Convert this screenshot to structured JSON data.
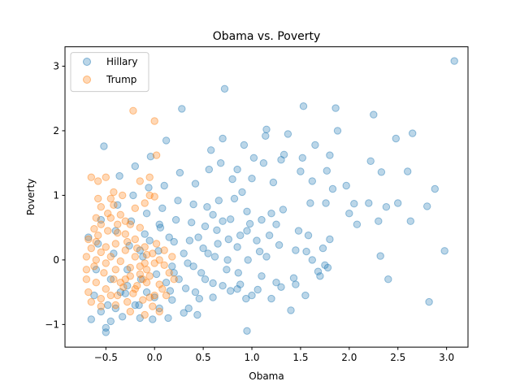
{
  "chart_data": {
    "type": "scatter",
    "title": "Obama vs. Poverty",
    "xlabel": "Obama",
    "ylabel": "Poverty",
    "xlim": [
      -0.92,
      3.22
    ],
    "ylim": [
      -1.35,
      3.3
    ],
    "xticks": [
      "−0.5",
      "0.0",
      "0.5",
      "1.0",
      "1.5",
      "2.0",
      "2.5",
      "3.0"
    ],
    "xtick_values": [
      -0.5,
      0.0,
      0.5,
      1.0,
      1.5,
      2.0,
      2.5,
      3.0
    ],
    "yticks": [
      "−1",
      "0",
      "1",
      "2",
      "3"
    ],
    "ytick_values": [
      -1,
      0,
      1,
      2,
      3
    ],
    "grid": false,
    "legend_position": "top-left",
    "series": [
      {
        "name": "Hillary",
        "color": "#1f77b4",
        "points": [
          [
            3.08,
            3.08
          ],
          [
            2.82,
            -0.65
          ],
          [
            2.98,
            0.14
          ],
          [
            2.88,
            1.1
          ],
          [
            2.8,
            0.83
          ],
          [
            2.65,
            1.96
          ],
          [
            2.6,
            1.37
          ],
          [
            2.63,
            0.6
          ],
          [
            2.5,
            0.88
          ],
          [
            2.48,
            1.88
          ],
          [
            2.38,
            0.82
          ],
          [
            2.33,
            1.36
          ],
          [
            2.3,
            0.6
          ],
          [
            2.32,
            0.06
          ],
          [
            2.4,
            -0.3
          ],
          [
            2.25,
            2.25
          ],
          [
            2.22,
            1.53
          ],
          [
            2.2,
            0.88
          ],
          [
            2.08,
            0.55
          ],
          [
            2.05,
            0.87
          ],
          [
            2.0,
            0.72
          ],
          [
            1.97,
            1.15
          ],
          [
            1.88,
            2.0
          ],
          [
            1.86,
            2.35
          ],
          [
            1.83,
            1.1
          ],
          [
            1.8,
            1.62
          ],
          [
            1.77,
            1.38
          ],
          [
            1.8,
            0.32
          ],
          [
            1.78,
            -0.12
          ],
          [
            1.76,
            0.88
          ],
          [
            1.73,
            0.18
          ],
          [
            1.7,
            -0.25
          ],
          [
            1.65,
            1.78
          ],
          [
            1.62,
            1.22
          ],
          [
            1.6,
            0.88
          ],
          [
            1.58,
            0.38
          ],
          [
            1.56,
            0.13
          ],
          [
            1.53,
            2.38
          ],
          [
            1.52,
            1.58
          ],
          [
            1.5,
            1.37
          ],
          [
            1.48,
            0.45
          ],
          [
            1.45,
            0.15
          ],
          [
            1.43,
            -0.28
          ],
          [
            1.4,
            -0.78
          ],
          [
            1.37,
            1.95
          ],
          [
            1.33,
            1.63
          ],
          [
            1.3,
            1.55
          ],
          [
            1.32,
            0.78
          ],
          [
            1.28,
            0.23
          ],
          [
            1.25,
            -0.35
          ],
          [
            1.22,
            1.2
          ],
          [
            1.2,
            0.72
          ],
          [
            1.18,
            0.38
          ],
          [
            1.15,
            2.02
          ],
          [
            1.14,
            1.92
          ],
          [
            1.12,
            1.5
          ],
          [
            1.1,
            0.62
          ],
          [
            1.08,
            0.13
          ],
          [
            1.06,
            -0.46
          ],
          [
            1.02,
            1.58
          ],
          [
            1.0,
            1.26
          ],
          [
            0.98,
            0.56
          ],
          [
            0.96,
            0.0
          ],
          [
            0.95,
            -1.1
          ],
          [
            0.94,
            -0.6
          ],
          [
            0.92,
            1.78
          ],
          [
            0.9,
            1.05
          ],
          [
            0.88,
            0.38
          ],
          [
            0.86,
            -0.2
          ],
          [
            0.85,
            -0.45
          ],
          [
            0.82,
            0.95
          ],
          [
            0.8,
            1.25
          ],
          [
            0.78,
            0.63
          ],
          [
            0.76,
            0.32
          ],
          [
            0.74,
            -0.15
          ],
          [
            0.72,
            2.65
          ],
          [
            0.7,
            1.88
          ],
          [
            0.68,
            1.5
          ],
          [
            0.66,
            0.92
          ],
          [
            0.64,
            0.46
          ],
          [
            0.62,
            0.05
          ],
          [
            0.6,
            -0.36
          ],
          [
            0.58,
            1.7
          ],
          [
            0.56,
            1.4
          ],
          [
            0.54,
            0.82
          ],
          [
            0.52,
            0.52
          ],
          [
            0.5,
            0.18
          ],
          [
            0.48,
            -0.2
          ],
          [
            0.46,
            -0.6
          ],
          [
            0.44,
            -0.85
          ],
          [
            0.42,
            1.18
          ],
          [
            0.4,
            0.86
          ],
          [
            0.38,
            0.58
          ],
          [
            0.36,
            0.3
          ],
          [
            0.34,
            -0.05
          ],
          [
            0.32,
            -0.44
          ],
          [
            0.3,
            -0.82
          ],
          [
            0.28,
            2.34
          ],
          [
            0.26,
            1.35
          ],
          [
            0.24,
            0.92
          ],
          [
            0.22,
            0.62
          ],
          [
            0.2,
            0.28
          ],
          [
            0.18,
            -0.1
          ],
          [
            0.16,
            -0.48
          ],
          [
            0.14,
            -0.9
          ],
          [
            0.12,
            1.85
          ],
          [
            0.1,
            1.15
          ],
          [
            0.08,
            0.8
          ],
          [
            0.06,
            0.5
          ],
          [
            0.04,
            0.14
          ],
          [
            0.02,
            -0.22
          ],
          [
            0.0,
            -0.58
          ],
          [
            -0.02,
            -0.92
          ],
          [
            -0.04,
            1.6
          ],
          [
            -0.06,
            1.12
          ],
          [
            -0.08,
            0.72
          ],
          [
            -0.1,
            0.4
          ],
          [
            -0.12,
            0.05
          ],
          [
            -0.14,
            -0.3
          ],
          [
            -0.16,
            -0.7
          ],
          [
            -0.2,
            1.45
          ],
          [
            -0.22,
            1.0
          ],
          [
            -0.24,
            0.6
          ],
          [
            -0.26,
            0.22
          ],
          [
            -0.28,
            -0.15
          ],
          [
            -0.3,
            -0.52
          ],
          [
            -0.33,
            -0.88
          ],
          [
            -0.36,
            1.3
          ],
          [
            -0.38,
            0.85
          ],
          [
            -0.4,
            0.45
          ],
          [
            -0.42,
            0.1
          ],
          [
            -0.45,
            -0.3
          ],
          [
            -0.48,
            -0.7
          ],
          [
            -0.5,
            -1.05
          ],
          [
            -0.52,
            1.76
          ],
          [
            -0.55,
            0.62
          ],
          [
            -0.58,
            0.25
          ],
          [
            -0.6,
            -0.15
          ],
          [
            -0.62,
            -0.55
          ],
          [
            -0.65,
            -0.92
          ],
          [
            -0.68,
            0.35
          ],
          [
            -0.55,
            -0.8
          ],
          [
            -0.5,
            -1.12
          ],
          [
            -0.45,
            -0.95
          ],
          [
            -0.4,
            -0.75
          ],
          [
            -0.35,
            -0.5
          ],
          [
            -0.28,
            -0.4
          ],
          [
            -0.2,
            -0.7
          ],
          [
            -0.15,
            -0.9
          ],
          [
            -0.08,
            -0.5
          ],
          [
            0.05,
            -0.75
          ],
          [
            0.12,
            -0.35
          ],
          [
            0.18,
            -0.62
          ],
          [
            0.25,
            -0.3
          ],
          [
            0.35,
            -0.75
          ],
          [
            0.42,
            -0.5
          ],
          [
            0.52,
            -0.3
          ],
          [
            0.6,
            -0.58
          ],
          [
            0.7,
            -0.4
          ],
          [
            0.78,
            -0.48
          ],
          [
            0.88,
            -0.38
          ],
          [
            1.0,
            -0.55
          ],
          [
            1.1,
            -0.25
          ],
          [
            1.2,
            -0.6
          ],
          [
            1.3,
            -0.42
          ],
          [
            1.45,
            -0.38
          ],
          [
            1.55,
            -0.55
          ],
          [
            1.62,
            0.0
          ],
          [
            1.68,
            -0.18
          ],
          [
            1.75,
            -0.08
          ],
          [
            0.3,
            0.1
          ],
          [
            0.45,
            0.35
          ],
          [
            0.55,
            0.1
          ],
          [
            0.65,
            0.25
          ],
          [
            0.75,
            0.0
          ],
          [
            0.85,
            0.2
          ],
          [
            0.95,
            0.45
          ],
          [
            1.05,
            0.3
          ],
          [
            1.15,
            0.05
          ],
          [
            1.25,
            0.55
          ],
          [
            0.15,
            0.35
          ],
          [
            0.05,
            0.55
          ],
          [
            -0.05,
            0.3
          ],
          [
            -0.15,
            0.15
          ],
          [
            0.2,
            -0.2
          ],
          [
            0.4,
            -0.1
          ],
          [
            0.6,
            0.7
          ],
          [
            0.7,
            0.6
          ],
          [
            0.85,
            1.4
          ],
          [
            0.95,
            0.75
          ]
        ]
      },
      {
        "name": "Trump",
        "color": "#ff7f0e",
        "points": [
          [
            -0.22,
            2.31
          ],
          [
            0.0,
            2.15
          ],
          [
            0.02,
            1.62
          ],
          [
            -0.05,
            1.28
          ],
          [
            0.0,
            0.98
          ],
          [
            -0.1,
            0.88
          ],
          [
            -0.2,
            0.8
          ],
          [
            -0.3,
            0.6
          ],
          [
            -0.42,
            1.05
          ],
          [
            -0.5,
            1.28
          ],
          [
            -0.58,
            1.22
          ],
          [
            -0.65,
            1.28
          ],
          [
            -0.45,
            0.95
          ],
          [
            -0.55,
            0.82
          ],
          [
            -0.6,
            0.65
          ],
          [
            -0.38,
            0.55
          ],
          [
            -0.48,
            0.45
          ],
          [
            -0.58,
            0.38
          ],
          [
            -0.68,
            0.32
          ],
          [
            -0.3,
            0.4
          ],
          [
            -0.2,
            0.32
          ],
          [
            -0.1,
            0.2
          ],
          [
            -0.02,
            0.1
          ],
          [
            0.05,
            0.0
          ],
          [
            0.1,
            -0.08
          ],
          [
            0.15,
            -0.2
          ],
          [
            0.2,
            -0.3
          ],
          [
            0.08,
            -0.45
          ],
          [
            0.0,
            -0.55
          ],
          [
            -0.08,
            -0.35
          ],
          [
            -0.15,
            -0.22
          ],
          [
            -0.25,
            -0.12
          ],
          [
            -0.35,
            -0.02
          ],
          [
            -0.45,
            0.05
          ],
          [
            -0.55,
            0.12
          ],
          [
            -0.65,
            0.18
          ],
          [
            -0.7,
            0.05
          ],
          [
            -0.62,
            -0.1
          ],
          [
            -0.52,
            -0.2
          ],
          [
            -0.42,
            -0.3
          ],
          [
            -0.32,
            -0.42
          ],
          [
            -0.22,
            -0.52
          ],
          [
            -0.12,
            -0.62
          ],
          [
            -0.02,
            -0.72
          ],
          [
            0.05,
            -0.8
          ],
          [
            -0.1,
            -0.85
          ],
          [
            -0.25,
            -0.8
          ],
          [
            -0.4,
            -0.7
          ],
          [
            -0.55,
            -0.6
          ],
          [
            -0.68,
            -0.5
          ],
          [
            -0.7,
            -0.3
          ],
          [
            -0.6,
            -0.35
          ],
          [
            -0.5,
            -0.45
          ],
          [
            -0.38,
            -0.55
          ],
          [
            -0.28,
            -0.65
          ],
          [
            -0.18,
            -0.4
          ],
          [
            -0.08,
            -0.15
          ],
          [
            0.02,
            0.25
          ],
          [
            0.1,
            0.15
          ],
          [
            0.18,
            0.05
          ],
          [
            -0.15,
            0.5
          ],
          [
            -0.25,
            0.55
          ],
          [
            -0.35,
            0.7
          ],
          [
            -0.45,
            0.65
          ],
          [
            -0.55,
            0.55
          ],
          [
            -0.62,
            0.48
          ],
          [
            -0.4,
            0.25
          ],
          [
            -0.3,
            0.15
          ],
          [
            -0.2,
            0.05
          ],
          [
            -0.1,
            -0.05
          ],
          [
            -0.5,
            -0.05
          ],
          [
            -0.6,
            0.0
          ],
          [
            -0.7,
            -0.15
          ],
          [
            -0.65,
            -0.65
          ],
          [
            -0.55,
            -0.72
          ],
          [
            -0.45,
            -0.55
          ],
          [
            -0.35,
            -0.35
          ],
          [
            -0.25,
            -0.25
          ],
          [
            -0.15,
            -0.1
          ],
          [
            -0.05,
            -0.25
          ],
          [
            0.05,
            -0.38
          ],
          [
            0.12,
            -0.55
          ],
          [
            -0.05,
            -0.58
          ],
          [
            -0.2,
            -0.45
          ],
          [
            -0.3,
            -0.3
          ],
          [
            -0.4,
            -0.15
          ],
          [
            -0.5,
            0.2
          ],
          [
            -0.6,
            0.28
          ],
          [
            -0.42,
            0.85
          ],
          [
            -0.33,
            1.0
          ],
          [
            -0.05,
            1.0
          ],
          [
            -0.15,
            1.22
          ],
          [
            -0.58,
            0.95
          ],
          [
            -0.48,
            0.72
          ],
          [
            -0.38,
            0.42
          ],
          [
            -0.28,
            0.28
          ],
          [
            -0.18,
            0.18
          ],
          [
            -0.08,
            0.08
          ],
          [
            0.0,
            -0.05
          ],
          [
            -0.12,
            -0.3
          ]
        ]
      }
    ]
  }
}
